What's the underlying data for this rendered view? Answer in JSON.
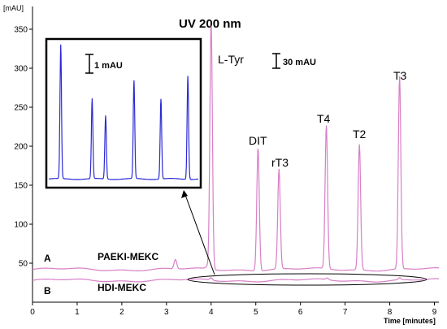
{
  "chart_data": {
    "type": "line",
    "title": "UV 200 nm",
    "y_axis_label": "[mAU]",
    "x_axis_label": "Time [minutes]",
    "xlim": [
      0,
      9.1
    ],
    "ylim": [
      0,
      375
    ],
    "x_ticks": [
      "0",
      "1",
      "2",
      "3",
      "4",
      "5",
      "6",
      "7",
      "8",
      "9"
    ],
    "y_ticks": [
      "50",
      "100",
      "150",
      "200",
      "250",
      "300",
      "350"
    ],
    "scale_bar_main": "30 mAU",
    "scale_bar_inset": "1 mAU",
    "traces": [
      {
        "label": "A",
        "name": "PAEKI-MEKC",
        "color": "#d77fc7",
        "baseline": 42,
        "peaks": [
          {
            "label": "L-Tyr",
            "x": 4.0,
            "y": 357
          },
          {
            "label": "DIT",
            "x": 5.05,
            "y": 200
          },
          {
            "label": "rT3",
            "x": 5.52,
            "y": 170
          },
          {
            "label": "T4",
            "x": 6.58,
            "y": 226
          },
          {
            "label": "T2",
            "x": 7.32,
            "y": 203
          },
          {
            "label": "T3",
            "x": 8.22,
            "y": 289
          }
        ]
      },
      {
        "label": "B",
        "name": "HDI-MEKC",
        "color": "#d77fc7",
        "baseline": 28,
        "peaks": []
      }
    ],
    "inset": {
      "color": "#2b2bd4",
      "peaks": [
        {
          "x": 0.08,
          "y": 0.97
        },
        {
          "x": 0.29,
          "y": 0.58
        },
        {
          "x": 0.38,
          "y": 0.46
        },
        {
          "x": 0.57,
          "y": 0.71
        },
        {
          "x": 0.75,
          "y": 0.58
        },
        {
          "x": 0.93,
          "y": 0.75
        }
      ]
    }
  }
}
